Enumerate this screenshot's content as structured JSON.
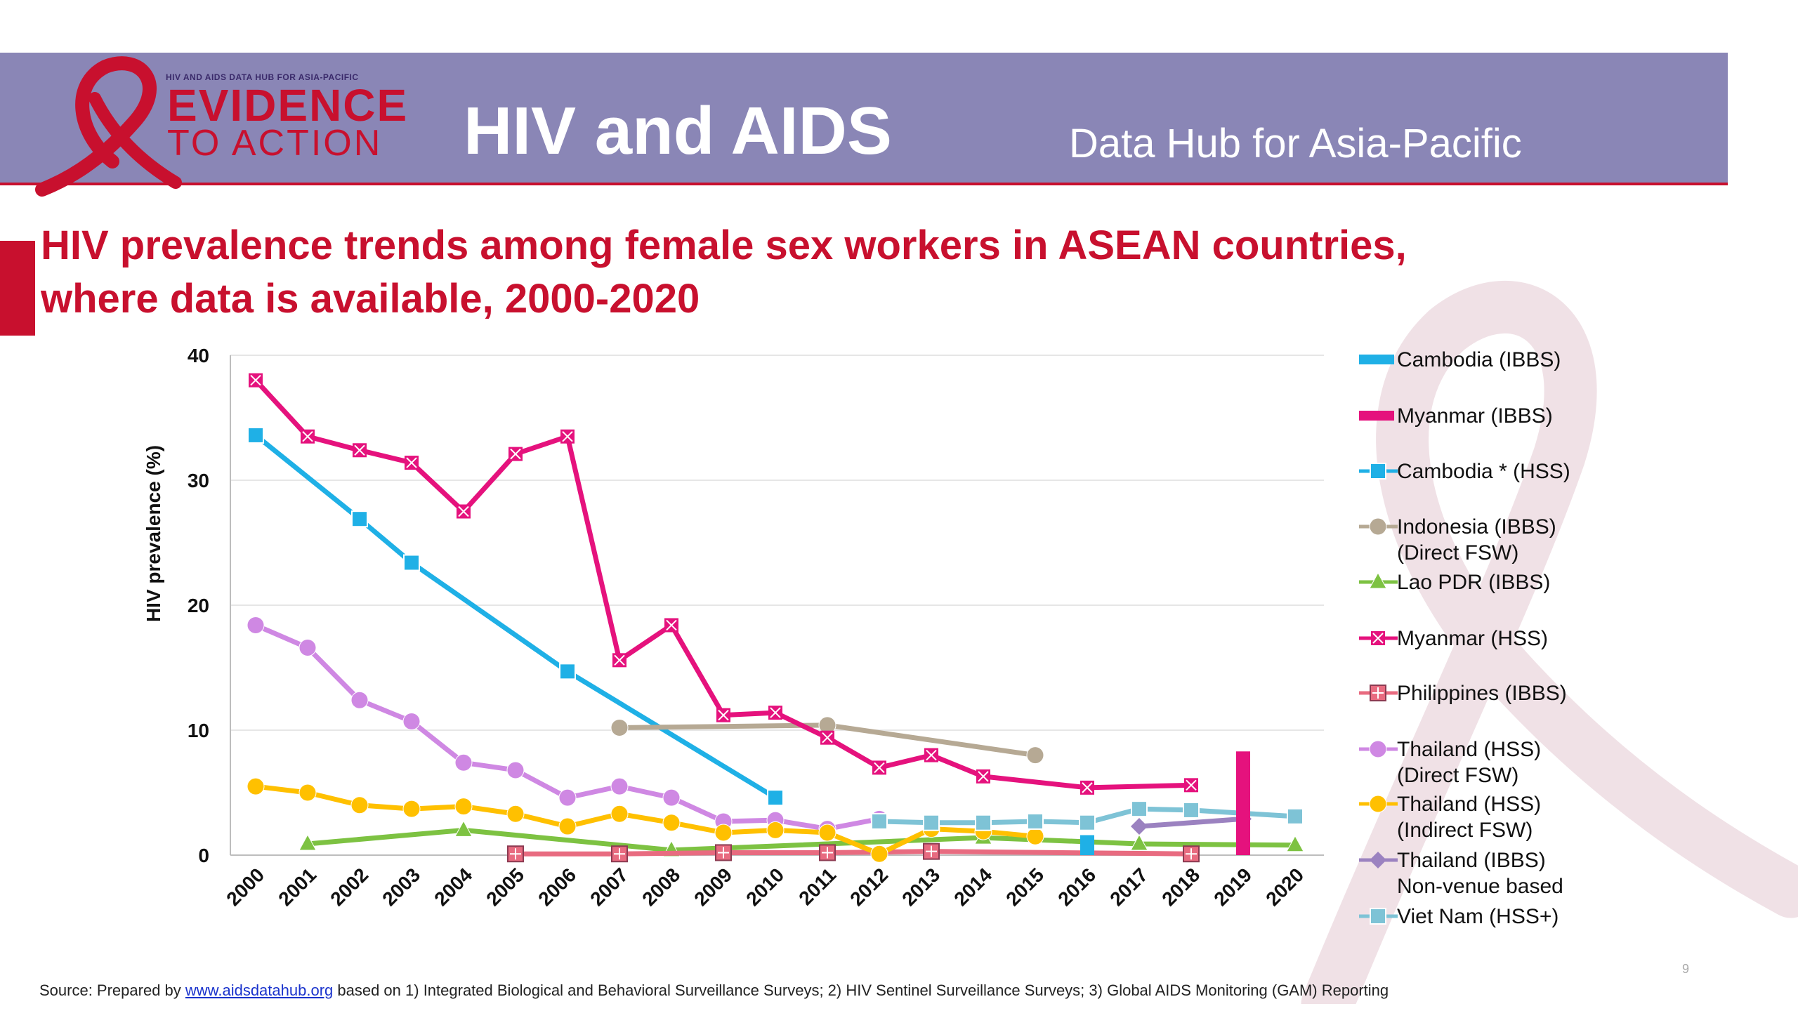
{
  "header": {
    "brand_small": "HIV AND AIDS DATA HUB FOR ASIA-PACIFIC",
    "brand_line1": "EVIDENCE",
    "brand_line2": "TO ACTION",
    "title": "HIV and AIDS",
    "subtitle": "Data Hub for Asia-Pacific"
  },
  "slide": {
    "title_line1": "HIV prevalence trends among female sex workers in  ASEAN countries,",
    "title_line2": "where data is available, 2000-2020",
    "page_number": "9"
  },
  "source": {
    "prefix": "Source: Prepared by ",
    "link": "www.aidsdatahub.org",
    "suffix": " based on 1) Integrated Biological and Behavioral Surveillance Surveys; 2) HIV Sentinel Surveillance Surveys; 3) Global AIDS Monitoring (GAM) Reporting"
  },
  "colors": {
    "banner": "#8a86b6",
    "accent": "#c8102e"
  },
  "chart_data": {
    "type": "line",
    "ylabel": "HIV prevalence (%)",
    "ylim": [
      0,
      40
    ],
    "yticks": [
      0,
      10,
      20,
      30,
      40
    ],
    "categories": [
      "2000",
      "2001",
      "2002",
      "2003",
      "2004",
      "2005",
      "2006",
      "2007",
      "2008",
      "2009",
      "2010",
      "2011",
      "2012",
      "2013",
      "2014",
      "2015",
      "2016",
      "2017",
      "2018",
      "2019",
      "2020"
    ],
    "legend_position": "right",
    "series": [
      {
        "name": "Cambodia (IBBS)",
        "color": "#1fb0e6",
        "marker": "bar",
        "values": [
          null,
          null,
          null,
          null,
          null,
          null,
          null,
          null,
          null,
          null,
          null,
          null,
          null,
          null,
          null,
          null,
          1.6,
          null,
          null,
          null,
          null
        ]
      },
      {
        "name": "Myanmar (IBBS)",
        "color": "#e5127d",
        "marker": "bar",
        "values": [
          null,
          null,
          null,
          null,
          null,
          null,
          null,
          null,
          null,
          null,
          null,
          null,
          null,
          null,
          null,
          null,
          null,
          null,
          null,
          8.3,
          null
        ]
      },
      {
        "name": "Cambodia * (HSS)",
        "color": "#1fb0e6",
        "marker": "square",
        "values": [
          33.6,
          null,
          26.9,
          23.4,
          null,
          null,
          14.7,
          null,
          null,
          null,
          4.6,
          null,
          null,
          null,
          null,
          null,
          null,
          null,
          null,
          null,
          null
        ]
      },
      {
        "name": "Indonesia (IBBS)\n(Direct FSW)",
        "color": "#b6a994",
        "marker": "circle",
        "values": [
          null,
          null,
          null,
          null,
          null,
          null,
          null,
          10.2,
          null,
          null,
          null,
          10.4,
          null,
          null,
          null,
          8.0,
          null,
          null,
          null,
          null,
          null
        ]
      },
      {
        "name": "Lao PDR (IBBS)",
        "color": "#7dc242",
        "marker": "triangle",
        "values": [
          null,
          0.9,
          null,
          null,
          2.0,
          null,
          null,
          null,
          0.4,
          null,
          null,
          null,
          null,
          null,
          1.4,
          null,
          null,
          0.9,
          null,
          null,
          0.8
        ]
      },
      {
        "name": "Myanmar (HSS)",
        "color": "#e5127d",
        "marker": "xbox",
        "values": [
          38.0,
          33.5,
          32.4,
          31.4,
          27.5,
          32.1,
          33.5,
          15.6,
          18.4,
          11.2,
          11.4,
          9.4,
          7.0,
          8.0,
          6.3,
          null,
          5.4,
          null,
          5.6,
          null,
          null
        ]
      },
      {
        "name": "Philippines (IBBS)",
        "color": "#e86b80",
        "marker": "plusbox",
        "values": [
          null,
          null,
          null,
          null,
          null,
          0.1,
          null,
          0.1,
          null,
          0.2,
          null,
          0.2,
          null,
          0.3,
          null,
          null,
          null,
          null,
          0.1,
          null,
          null
        ]
      },
      {
        "name": "Thailand (HSS)\n(Direct FSW)",
        "color": "#cf88e3",
        "marker": "circle",
        "values": [
          18.4,
          16.6,
          12.4,
          10.7,
          7.4,
          6.8,
          4.6,
          5.5,
          4.6,
          2.7,
          2.8,
          2.1,
          2.9,
          null,
          null,
          null,
          null,
          null,
          null,
          null,
          null
        ]
      },
      {
        "name": "Thailand (HSS)\n(Indirect FSW)",
        "color": "#ffc000",
        "marker": "circle",
        "values": [
          5.5,
          5.0,
          4.0,
          3.7,
          3.9,
          3.3,
          2.3,
          3.3,
          2.6,
          1.8,
          2.0,
          1.8,
          0.1,
          2.1,
          1.9,
          1.5,
          null,
          null,
          null,
          null,
          null
        ]
      },
      {
        "name": "Thailand (IBBS)\nNon-venue based",
        "color": "#9b82c0",
        "marker": "diamond",
        "values": [
          null,
          null,
          null,
          null,
          null,
          null,
          null,
          null,
          null,
          null,
          null,
          null,
          null,
          null,
          null,
          null,
          null,
          2.3,
          null,
          2.9,
          null
        ]
      },
      {
        "name": "Viet Nam (HSS+)",
        "color": "#7ec3d6",
        "marker": "square",
        "values": [
          null,
          null,
          null,
          null,
          null,
          null,
          null,
          null,
          null,
          null,
          null,
          null,
          2.7,
          2.6,
          2.6,
          2.7,
          2.6,
          3.7,
          3.6,
          null,
          3.1
        ]
      }
    ]
  }
}
